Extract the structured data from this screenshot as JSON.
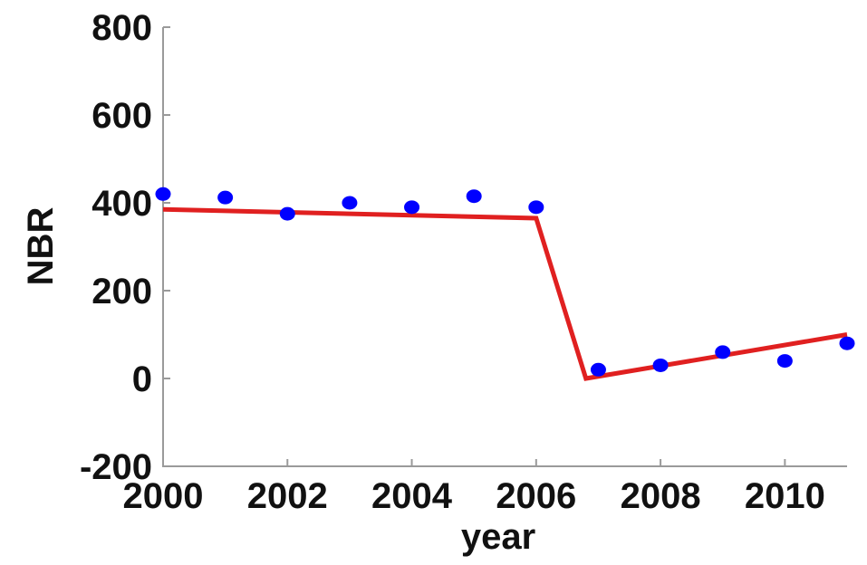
{
  "chart_data": {
    "type": "scatter",
    "title": "",
    "xlabel": "year",
    "ylabel": "NBR",
    "xlim": [
      2000,
      2011
    ],
    "ylim": [
      -200,
      800
    ],
    "xticks": [
      "2000",
      "2002",
      "2004",
      "2006",
      "2008",
      "2010"
    ],
    "yticks": [
      "800",
      "600",
      "400",
      "200",
      "0",
      "-200"
    ],
    "grid": false,
    "points": {
      "color": "#0000ff",
      "x": [
        2000,
        2001,
        2002,
        2003,
        2004,
        2005,
        2006,
        2007,
        2008,
        2009,
        2010,
        2011
      ],
      "y": [
        420,
        412,
        375,
        400,
        390,
        415,
        390,
        20,
        30,
        60,
        40,
        80
      ]
    },
    "fit_line": {
      "color": "#e02020",
      "x": [
        2000,
        2006,
        2006.8,
        2011
      ],
      "y": [
        385,
        365,
        0,
        100
      ]
    }
  }
}
